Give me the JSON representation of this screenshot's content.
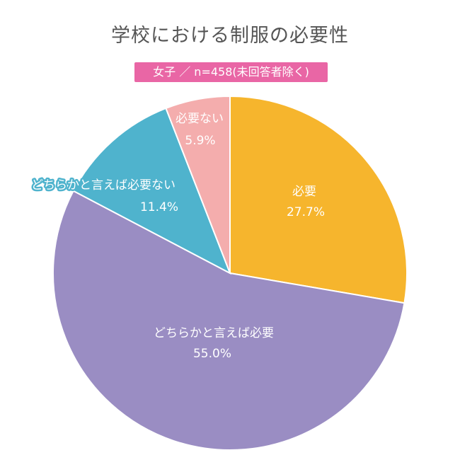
{
  "title": "学校における制服の必要性",
  "subtitle": "女子 ／ n=458(未回答者除く)",
  "chart_data": {
    "type": "pie",
    "slices": [
      {
        "label": "必要",
        "value": 27.7,
        "value_label": "27.7%",
        "color": "#f6b52d"
      },
      {
        "label": "どちらかと言えば必要",
        "value": 55.0,
        "value_label": "55.0%",
        "color": "#9a8dc3"
      },
      {
        "label": "どちらかと言えば必要ない",
        "value": 11.4,
        "value_label": "11.4%",
        "color": "#4fb3cd"
      },
      {
        "label": "必要ない",
        "value": 5.9,
        "value_label": "5.9%",
        "color": "#f4adad"
      }
    ]
  }
}
